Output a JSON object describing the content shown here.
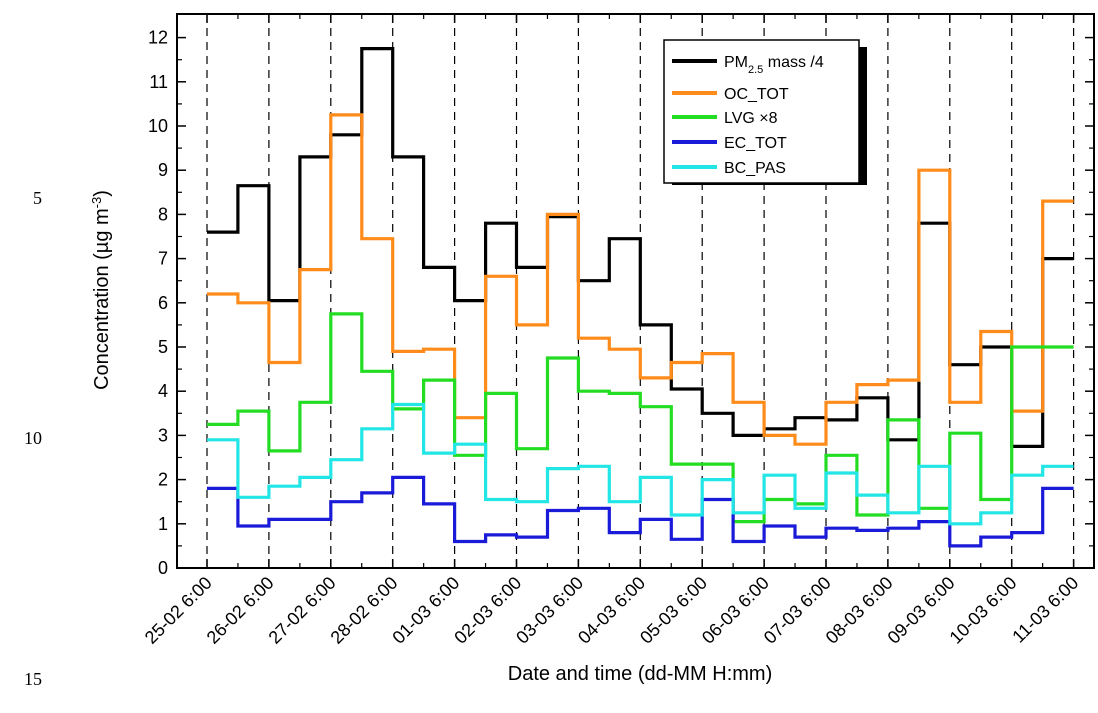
{
  "line_numbers": [
    "5",
    "10",
    "15"
  ],
  "legend": {
    "pm_base": "PM",
    "pm_sub": "2.5",
    "pm_rest": " mass /4"
  },
  "chart_data": {
    "type": "line",
    "step": true,
    "xlabel": "Date and time (dd-MM H:mm)",
    "ylabel_main": "Concentration (",
    "ylabel_unit": "µg m",
    "ylabel_sup": "-3",
    "ylabel_close": ")",
    "ylim": [
      0,
      12.5
    ],
    "yticks": [
      0,
      1,
      2,
      3,
      4,
      5,
      6,
      7,
      8,
      9,
      10,
      11,
      12
    ],
    "x_tick_labels": [
      "25-02 6:00",
      "26-02 6:00",
      "27-02 6:00",
      "28-02 6:00",
      "01-03 6:00",
      "02-03 6:00",
      "03-03 6:00",
      "04-03 6:00",
      "05-03 6:00",
      "06-03 6:00",
      "07-03 6:00",
      "08-03 6:00",
      "09-03 6:00",
      "10-03 6:00",
      "11-03 6:00"
    ],
    "grid": "vertical dashed at day ticks",
    "legend_position": "top-right",
    "series": [
      {
        "name": "PM2.5 mass /4",
        "color": "#000000",
        "values": [
          7.6,
          8.65,
          6.05,
          9.3,
          9.8,
          11.75,
          9.3,
          6.8,
          6.05,
          7.8,
          6.8,
          7.95,
          6.5,
          7.45,
          5.5,
          4.05,
          3.5,
          3.0,
          3.15,
          3.4,
          3.35,
          3.85,
          2.9,
          7.8,
          4.6,
          5.0,
          2.75,
          7.0
        ]
      },
      {
        "name": "OC_TOT",
        "color": "#ff8c1a",
        "values": [
          6.2,
          6.0,
          4.65,
          6.75,
          10.25,
          7.45,
          4.9,
          4.95,
          3.4,
          6.6,
          5.5,
          8.0,
          5.2,
          4.95,
          4.3,
          4.65,
          4.85,
          3.75,
          3.0,
          2.8,
          3.75,
          4.15,
          4.25,
          9.0,
          3.75,
          5.35,
          3.55,
          8.3
        ]
      },
      {
        "name": "LVG ×8",
        "color": "#22dd22",
        "values": [
          3.25,
          3.55,
          2.65,
          3.75,
          5.75,
          4.45,
          3.6,
          4.25,
          2.55,
          3.95,
          2.7,
          4.75,
          4.0,
          3.95,
          3.65,
          2.35,
          2.35,
          1.05,
          1.55,
          1.45,
          2.55,
          1.2,
          3.35,
          1.35,
          3.05,
          1.55,
          5.0,
          5.0
        ]
      },
      {
        "name": "EC_TOT",
        "color": "#1a1ad9",
        "values": [
          1.8,
          0.95,
          1.1,
          1.1,
          1.5,
          1.7,
          2.05,
          1.45,
          0.6,
          0.75,
          0.7,
          1.3,
          1.35,
          0.8,
          1.1,
          0.65,
          1.55,
          0.6,
          0.95,
          0.7,
          0.9,
          0.85,
          0.9,
          1.05,
          0.5,
          0.7,
          0.8,
          1.8
        ]
      },
      {
        "name": "BC_PAS",
        "color": "#22e5e5",
        "values": [
          2.9,
          1.6,
          1.85,
          2.05,
          2.45,
          3.15,
          3.7,
          2.6,
          2.8,
          1.55,
          1.5,
          2.25,
          2.3,
          1.5,
          2.05,
          1.2,
          2.0,
          1.25,
          2.1,
          1.35,
          2.15,
          1.65,
          1.25,
          2.3,
          1.0,
          1.25,
          2.1,
          2.3
        ]
      }
    ]
  }
}
